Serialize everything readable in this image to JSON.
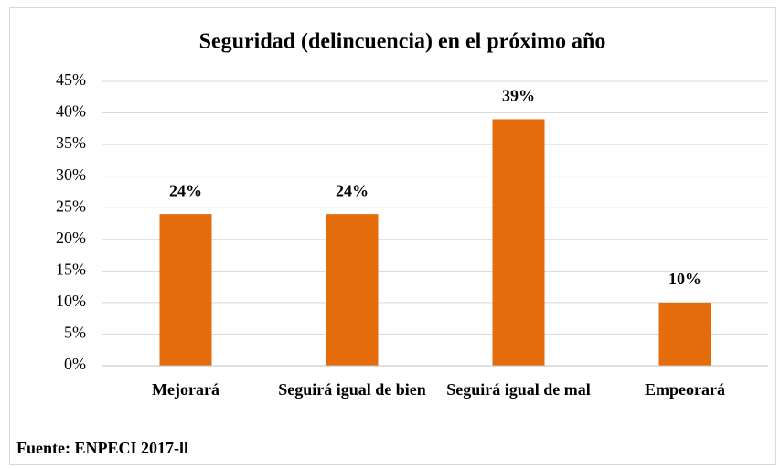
{
  "chart_data": {
    "type": "bar",
    "title": "Seguridad (delincuencia) en el próximo año",
    "categories": [
      "Mejorará",
      "Seguirá igual de bien",
      "Seguirá igual de mal",
      "Empeorará"
    ],
    "values": [
      24,
      24,
      39,
      10
    ],
    "value_labels": [
      "24%",
      "24%",
      "39%",
      "10%"
    ],
    "color": "#e46c0a",
    "ylim": [
      0,
      45
    ],
    "yticks": [
      {
        "value": 0,
        "label": "0%"
      },
      {
        "value": 5,
        "label": "5%"
      },
      {
        "value": 10,
        "label": "10%"
      },
      {
        "value": 15,
        "label": "15%"
      },
      {
        "value": 20,
        "label": "20%"
      },
      {
        "value": 25,
        "label": "25%"
      },
      {
        "value": 30,
        "label": "30%"
      },
      {
        "value": 35,
        "label": "35%"
      },
      {
        "value": 40,
        "label": "40%"
      },
      {
        "value": 45,
        "label": "45%"
      }
    ],
    "grid": true,
    "source": "Fuente: ENPECI 2017-ll"
  }
}
